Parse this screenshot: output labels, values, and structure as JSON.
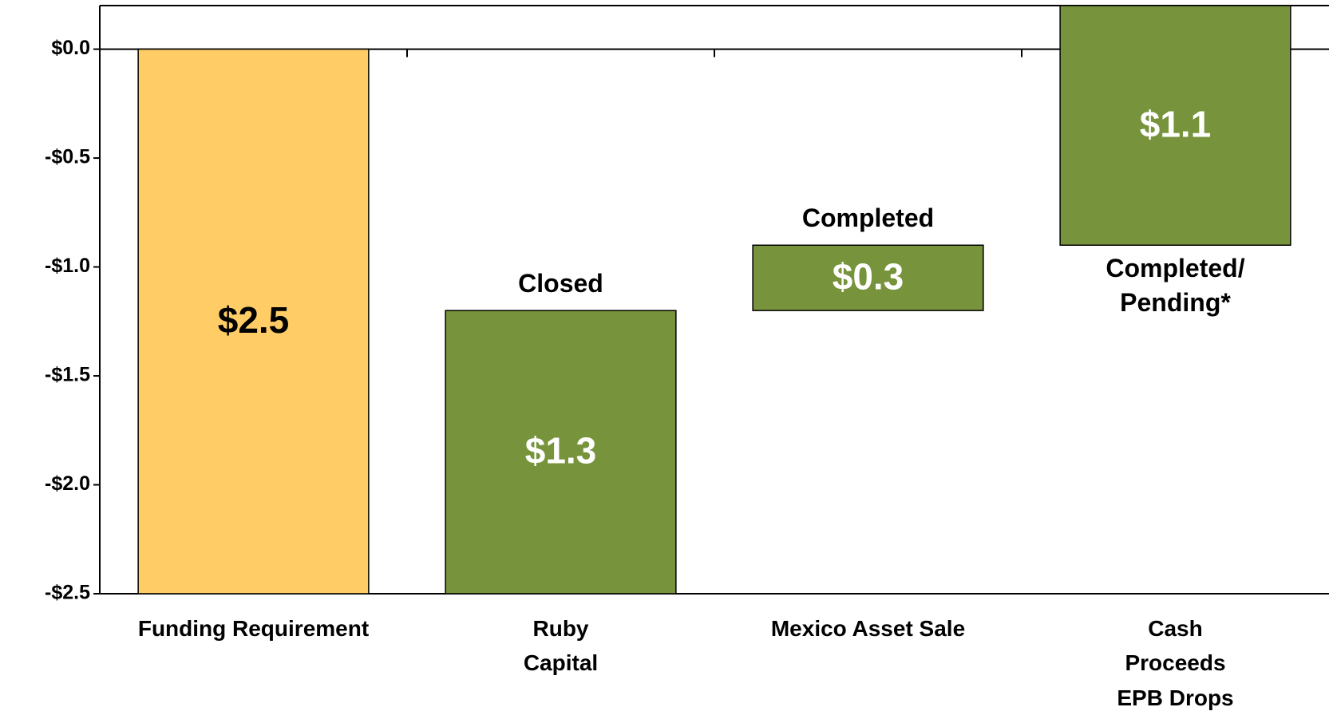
{
  "chart_data": {
    "type": "waterfall",
    "categories": [
      "Funding Requirement",
      "Ruby\nCapital",
      "Mexico Asset Sale",
      "Cash Proceeds\nEPB Drops"
    ],
    "values": [
      -2.5,
      1.3,
      0.3,
      1.1
    ],
    "value_labels": [
      "$2.5",
      "$1.3",
      "$0.3",
      "$1.1"
    ],
    "colors": [
      "#FFCC66",
      "#77933C",
      "#77933C",
      "#77933C"
    ],
    "value_label_colors": [
      "#000000",
      "#FFFFFF",
      "#FFFFFF",
      "#FFFFFF"
    ],
    "annotations": [
      null,
      "Closed",
      "Completed",
      "Completed/\nPending*"
    ],
    "ylim": [
      -2.5,
      0.2
    ],
    "yticks": [
      {
        "value": 0,
        "label": "$0.0"
      },
      {
        "value": -0.5,
        "label": "-$0.5"
      },
      {
        "value": -1,
        "label": "-$1.0"
      },
      {
        "value": -1.5,
        "label": "-$1.5"
      },
      {
        "value": -2,
        "label": "-$2.0"
      },
      {
        "value": -2.5,
        "label": "-$2.5"
      }
    ]
  }
}
